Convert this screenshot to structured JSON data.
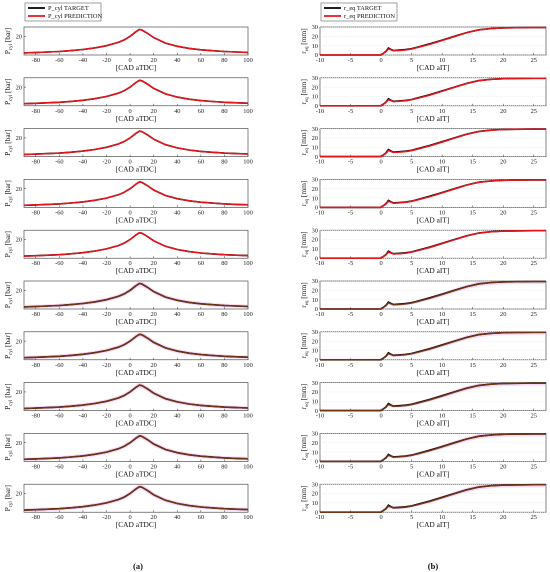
{
  "legend": {
    "left": {
      "target": "P_cyl TARGET",
      "prediction": "P_cyl PREDICTION"
    },
    "right": {
      "target": "r_eq TARGET",
      "prediction": "r_eq PREDICTION"
    }
  },
  "captions": {
    "left": "(a)",
    "right": "(b)"
  },
  "colors": {
    "target": "#000000",
    "prediction": "#e8141b",
    "band": "#f2b8ef",
    "prediction_dark": "#7a3a16"
  },
  "chart_data": [
    {
      "type": "line",
      "panel": "left",
      "rows": 10,
      "xlabel": "[CAD aTDC]",
      "ylabel": "P_cyl [bar]",
      "xlim": [
        -90,
        100
      ],
      "ylim": [
        0,
        30
      ],
      "xticks": [
        -80,
        -60,
        -40,
        -20,
        0,
        20,
        40,
        60,
        80,
        100
      ],
      "yticks": [
        20
      ],
      "x": [
        -90,
        -80,
        -70,
        -60,
        -50,
        -40,
        -30,
        -20,
        -10,
        -5,
        0,
        5,
        8,
        10,
        15,
        20,
        30,
        40,
        50,
        60,
        70,
        80,
        90,
        100
      ],
      "series": [
        {
          "name": "P_cyl TARGET",
          "values": [
            2.3,
            2.7,
            3.2,
            3.8,
            4.7,
            5.9,
            7.6,
            10.0,
            13.5,
            16.2,
            20.0,
            25.0,
            27.3,
            26.8,
            23.0,
            18.6,
            12.8,
            9.3,
            7.1,
            5.6,
            4.6,
            3.8,
            3.2,
            2.8
          ]
        },
        {
          "name": "P_cyl PREDICTION",
          "values": [
            2.3,
            2.7,
            3.2,
            3.8,
            4.7,
            5.9,
            7.6,
            10.0,
            13.5,
            16.2,
            20.0,
            25.0,
            27.3,
            26.8,
            23.0,
            18.6,
            12.8,
            9.3,
            7.1,
            5.6,
            4.6,
            3.8,
            3.2,
            2.8
          ]
        }
      ],
      "uncertainty_band_rows": [
        6,
        7,
        8,
        9,
        10
      ]
    },
    {
      "type": "line",
      "panel": "right",
      "rows": 10,
      "xlabel": "[CAD aIT]",
      "ylabel": "r_eq [mm]",
      "xlim": [
        -10,
        27
      ],
      "ylim": [
        0,
        30
      ],
      "xticks": [
        -10,
        -5,
        0,
        5,
        10,
        15,
        20,
        25
      ],
      "yticks": [
        0,
        10,
        20,
        30
      ],
      "x": [
        -10,
        0,
        0.8,
        1.2,
        1.6,
        2.0,
        3.0,
        4.0,
        5.0,
        6.0,
        8.0,
        10.0,
        12.0,
        14.0,
        16.0,
        18.0,
        20.0,
        22.0,
        25.0,
        27.0
      ],
      "series": [
        {
          "name": "r_eq TARGET",
          "values": [
            0,
            0,
            4.0,
            7.5,
            6.0,
            4.8,
            5.2,
            5.8,
            6.8,
            8.5,
            12.0,
            16.0,
            20.0,
            24.0,
            27.0,
            28.4,
            29.0,
            29.3,
            29.5,
            29.5
          ]
        },
        {
          "name": "r_eq PREDICTION",
          "values": [
            0,
            0,
            3.5,
            6.5,
            5.6,
            4.5,
            4.8,
            5.4,
            6.4,
            8.0,
            11.5,
            15.5,
            19.7,
            23.8,
            26.8,
            28.3,
            29.0,
            29.3,
            29.5,
            29.5
          ]
        }
      ],
      "uncertainty_band_rows": [
        6,
        7,
        8,
        9,
        10
      ]
    }
  ]
}
